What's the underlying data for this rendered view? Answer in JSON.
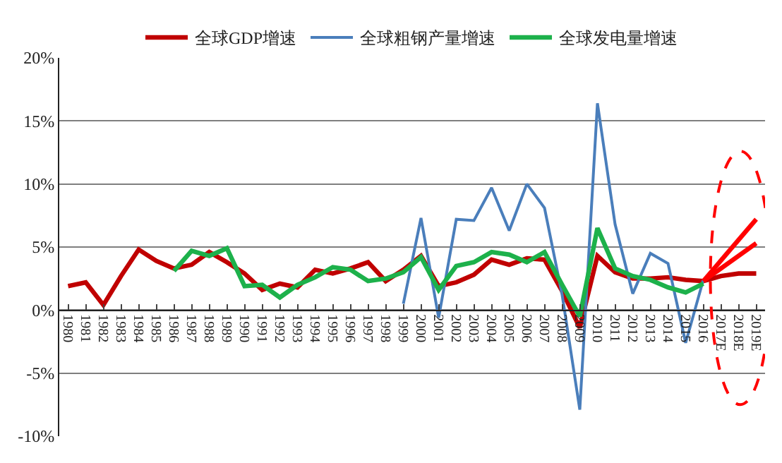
{
  "chart_data": {
    "type": "line",
    "categories": [
      "1980",
      "1981",
      "1982",
      "1983",
      "1984",
      "1985",
      "1986",
      "1987",
      "1988",
      "1989",
      "1990",
      "1991",
      "1992",
      "1993",
      "1994",
      "1995",
      "1996",
      "1997",
      "1998",
      "1999",
      "2000",
      "2001",
      "2002",
      "2003",
      "2004",
      "2005",
      "2006",
      "2007",
      "2008",
      "2009",
      "2010",
      "2011",
      "2012",
      "2013",
      "2014",
      "2015",
      "2016",
      "2017E",
      "2018E",
      "2019E"
    ],
    "series": [
      {
        "name": "全球GDP增速",
        "color": "#c00000",
        "values": [
          1.9,
          2.2,
          0.4,
          2.7,
          4.8,
          3.9,
          3.3,
          3.6,
          4.6,
          3.8,
          2.9,
          1.6,
          2.1,
          1.8,
          3.2,
          2.9,
          3.3,
          3.8,
          2.3,
          3.2,
          4.3,
          1.9,
          2.2,
          2.8,
          4.0,
          3.6,
          4.1,
          4.0,
          1.5,
          -1.4,
          4.3,
          3.0,
          2.5,
          2.5,
          2.6,
          2.4,
          2.3,
          2.7,
          2.9,
          2.9
        ]
      },
      {
        "name": "全球粗钢产量增速",
        "color": "#4a7ebb",
        "values": [
          null,
          null,
          null,
          null,
          null,
          null,
          null,
          null,
          null,
          null,
          null,
          null,
          null,
          null,
          null,
          null,
          null,
          null,
          null,
          0.5,
          7.3,
          -0.6,
          7.2,
          7.1,
          9.7,
          6.3,
          10.0,
          8.1,
          1.2,
          -7.9,
          16.4,
          6.8,
          1.3,
          4.5,
          3.7,
          -2.6,
          2.4,
          null,
          null,
          null
        ]
      },
      {
        "name": "全球发电量增速",
        "color": "#1db14b",
        "values": [
          null,
          null,
          null,
          null,
          null,
          null,
          3.1,
          4.7,
          4.3,
          4.9,
          1.9,
          2.0,
          1.0,
          2.0,
          2.6,
          3.4,
          3.2,
          2.3,
          2.5,
          3.0,
          4.2,
          1.6,
          3.5,
          3.8,
          4.6,
          4.4,
          3.8,
          4.6,
          2.0,
          -0.5,
          6.5,
          3.3,
          2.7,
          2.4,
          1.8,
          1.4,
          2.1,
          null,
          null,
          null
        ]
      },
      {
        "color": "#ff0000",
        "values": [
          null,
          null,
          null,
          null,
          null,
          null,
          null,
          null,
          null,
          null,
          null,
          null,
          null,
          null,
          null,
          null,
          null,
          null,
          null,
          null,
          null,
          null,
          null,
          null,
          null,
          null,
          null,
          null,
          null,
          null,
          null,
          null,
          null,
          null,
          null,
          null,
          2.3,
          null,
          null,
          7.2
        ]
      },
      {
        "color": "#ff0000",
        "values": [
          null,
          null,
          null,
          null,
          null,
          null,
          null,
          null,
          null,
          null,
          null,
          null,
          null,
          null,
          null,
          null,
          null,
          null,
          null,
          null,
          null,
          null,
          null,
          null,
          null,
          null,
          null,
          null,
          null,
          null,
          null,
          null,
          null,
          null,
          null,
          null,
          2.3,
          null,
          null,
          5.3
        ]
      }
    ],
    "ylim": [
      -10,
      20
    ],
    "yticks": [
      {
        "value": -10,
        "label": "-10%"
      },
      {
        "value": -5,
        "label": "-5%"
      },
      {
        "value": 0,
        "label": "0%"
      },
      {
        "value": 5,
        "label": "5%"
      },
      {
        "value": 10,
        "label": "10%"
      },
      {
        "value": 15,
        "label": "15%"
      },
      {
        "value": 20,
        "label": "20%"
      }
    ],
    "grid": "y",
    "legend": "top",
    "marker": "none",
    "line_style": "solid"
  }
}
